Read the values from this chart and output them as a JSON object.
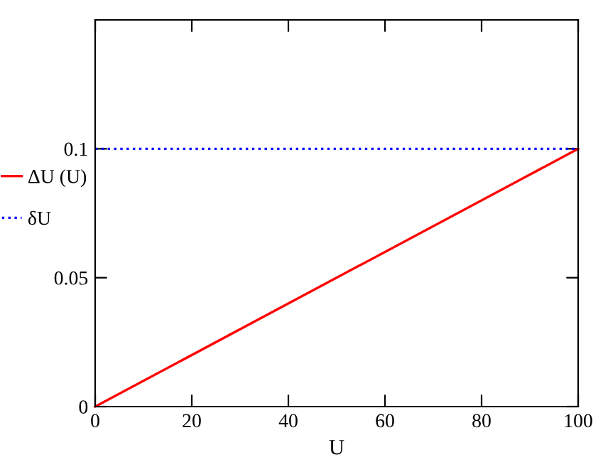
{
  "chart_data": {
    "type": "line",
    "xlabel": "U",
    "x": [
      0,
      100
    ],
    "series": [
      {
        "name": "ΔU (U)",
        "color": "#ff0000",
        "values": [
          0,
          0.1
        ],
        "line_style": "solid"
      },
      {
        "name": "δU",
        "color": "#0000ff",
        "values": [
          0.1,
          0.1
        ],
        "line_style": "dotted"
      }
    ],
    "xlim": [
      0,
      100
    ],
    "xticks": [
      0,
      20,
      40,
      60,
      80,
      100
    ],
    "ylim": [
      0,
      0.15
    ],
    "yticks": [
      0,
      0.05,
      0.1
    ],
    "grid": false,
    "legend": "left",
    "marker": "none"
  }
}
